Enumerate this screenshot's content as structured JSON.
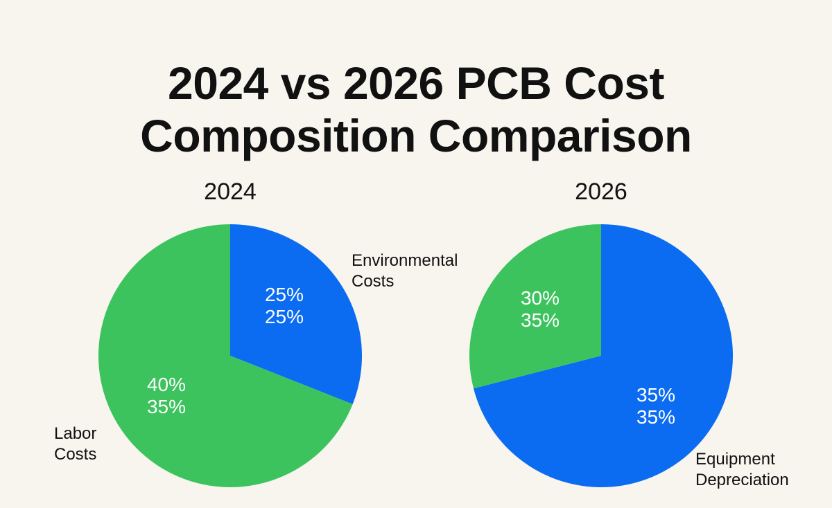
{
  "chart_data": {
    "type": "pie",
    "title": "2024 vs 2026 PCB Cost Composition Comparison",
    "colors": {
      "blue": "#0b6cf2",
      "green": "#3cc35e"
    },
    "pies": [
      {
        "subtitle": "2024",
        "slices": [
          {
            "name": "Environmental Costs",
            "value": 31,
            "color": "#0b6cf2",
            "data_labels": [
              "25%",
              "25%"
            ],
            "legend": [
              "Environmental",
              "Costs"
            ]
          },
          {
            "name": "Labor Costs",
            "value": 69,
            "color": "#3cc35e",
            "data_labels": [
              "40%",
              "35%"
            ],
            "legend": [
              "Labor",
              "Costs"
            ]
          }
        ]
      },
      {
        "subtitle": "2026",
        "slices": [
          {
            "name": "Equipment Depreciation",
            "value": 71,
            "color": "#0b6cf2",
            "data_labels": [
              "35%",
              "35%"
            ],
            "legend": [
              "Equipment",
              "Depreciation"
            ]
          },
          {
            "name": "Environmental Costs",
            "value": 29,
            "color": "#3cc35e",
            "data_labels": [
              "30%",
              "35%"
            ],
            "legend": []
          }
        ]
      }
    ]
  }
}
